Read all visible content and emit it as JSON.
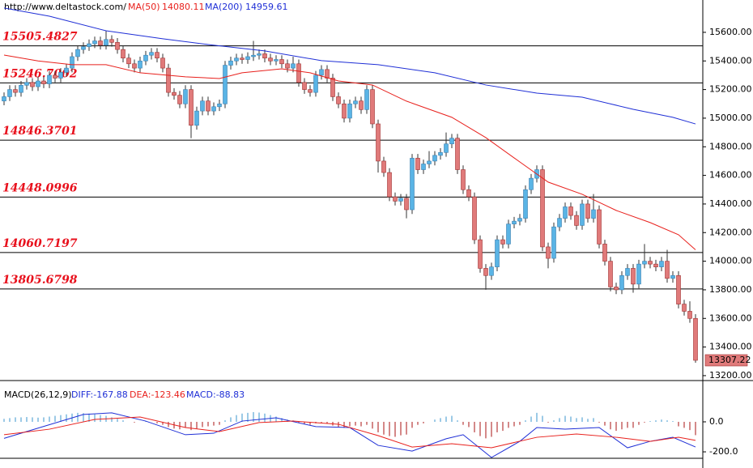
{
  "chart_data": {
    "type": "candlestick",
    "source": "http://www.deltastock.com/",
    "up_color": "#5ab4e5",
    "down_color": "#e07a7a",
    "wick_color": "#333333",
    "open": [
      15120,
      15150,
      15200,
      15180,
      15230,
      15250,
      15220,
      15260,
      15240,
      15300,
      15280,
      15320,
      15350,
      15430,
      15480,
      15500,
      15520,
      15540,
      15510,
      15550,
      15530,
      15480,
      15420,
      15380,
      15350,
      15400,
      15440,
      15460,
      15420,
      15350,
      15180,
      15160,
      15100,
      15200,
      14950,
      15050,
      15120,
      15050,
      15080,
      15100,
      15370,
      15400,
      15420,
      15410,
      15430,
      15440,
      15450,
      15420,
      15400,
      15410,
      15380,
      15350,
      15380,
      15250,
      15200,
      15180,
      15300,
      15340,
      15280,
      15150,
      15100,
      15000,
      15100,
      15120,
      15060,
      15200,
      14960,
      14700,
      14620,
      14450,
      14420,
      14440,
      14360,
      14720,
      14640,
      14680,
      14700,
      14740,
      14760,
      14820,
      14860,
      14640,
      14500,
      14450,
      14150,
      13950,
      13900,
      13960,
      14150,
      14120,
      14260,
      14280,
      14300,
      14500,
      14580,
      14640,
      14100,
      14020,
      14240,
      14300,
      14380,
      14320,
      14250,
      14400,
      14300,
      14360,
      14120,
      14000,
      13820,
      13800,
      13900,
      13950,
      13840,
      13980,
      14000,
      13980,
      13960,
      14000,
      13880,
      13900,
      13700,
      13650,
      13600
    ],
    "high": [
      15180,
      15230,
      15230,
      15260,
      15280,
      15280,
      15290,
      15290,
      15330,
      15330,
      15350,
      15380,
      15460,
      15510,
      15530,
      15550,
      15570,
      15570,
      15610,
      15580,
      15560,
      15510,
      15450,
      15410,
      15430,
      15470,
      15490,
      15490,
      15450,
      15380,
      15210,
      15190,
      15230,
      15230,
      15080,
      15150,
      15150,
      15110,
      15130,
      15400,
      15430,
      15450,
      15450,
      15460,
      15540,
      15480,
      15480,
      15450,
      15440,
      15440,
      15410,
      15430,
      15410,
      15280,
      15230,
      15330,
      15370,
      15370,
      15310,
      15180,
      15130,
      15130,
      15150,
      15150,
      15230,
      15230,
      14990,
      14730,
      14650,
      14480,
      14470,
      14470,
      14750,
      14750,
      14710,
      14770,
      14770,
      14790,
      14900,
      14890,
      14890,
      14670,
      14530,
      14480,
      14180,
      13980,
      13990,
      14180,
      14180,
      14290,
      14310,
      14330,
      14530,
      14610,
      14670,
      14670,
      14130,
      14270,
      14330,
      14410,
      14410,
      14350,
      14430,
      14430,
      14470,
      14390,
      14150,
      14030,
      13850,
      13930,
      13980,
      13980,
      14010,
      14120,
      14030,
      14010,
      14030,
      14080,
      13930,
      13930,
      13730,
      13720,
      13630
    ],
    "low": [
      15090,
      15120,
      15150,
      15150,
      15200,
      15190,
      15190,
      15210,
      15210,
      15250,
      15250,
      15290,
      15320,
      15400,
      15450,
      15470,
      15490,
      15480,
      15480,
      15500,
      15450,
      15390,
      15350,
      15320,
      15320,
      15370,
      15410,
      15390,
      15320,
      15150,
      15130,
      15070,
      15070,
      14860,
      14920,
      15020,
      15020,
      15020,
      15050,
      15070,
      15340,
      15370,
      15380,
      15380,
      15400,
      15410,
      15390,
      15370,
      15370,
      15350,
      15320,
      15320,
      15220,
      15170,
      15150,
      15150,
      15270,
      15250,
      15120,
      15070,
      14970,
      14970,
      15070,
      15030,
      15030,
      14930,
      14620,
      14590,
      14420,
      14390,
      14390,
      14300,
      14330,
      14610,
      14610,
      14650,
      14670,
      14710,
      14730,
      14790,
      14610,
      14470,
      14420,
      14120,
      13920,
      13800,
      13870,
      13930,
      14090,
      14090,
      14230,
      14250,
      14270,
      14470,
      14550,
      14070,
      13950,
      13990,
      14210,
      14270,
      14290,
      14220,
      14220,
      14270,
      14270,
      14090,
      13970,
      13790,
      13770,
      13770,
      13870,
      13780,
      13810,
      13950,
      13950,
      13930,
      13930,
      13850,
      13850,
      13670,
      13620,
      13570,
      13290
    ],
    "close": [
      15150,
      15200,
      15180,
      15230,
      15250,
      15220,
      15260,
      15240,
      15300,
      15280,
      15320,
      15350,
      15430,
      15480,
      15500,
      15520,
      15540,
      15510,
      15550,
      15530,
      15480,
      15420,
      15380,
      15350,
      15400,
      15440,
      15460,
      15420,
      15350,
      15180,
      15160,
      15100,
      15200,
      14950,
      15050,
      15120,
      15050,
      15080,
      15100,
      15370,
      15400,
      15420,
      15410,
      15430,
      15440,
      15450,
      15420,
      15400,
      15410,
      15380,
      15350,
      15380,
      15250,
      15200,
      15180,
      15300,
      15340,
      15280,
      15150,
      15100,
      15000,
      15100,
      15120,
      15060,
      15200,
      14960,
      14700,
      14620,
      14450,
      14420,
      14440,
      14360,
      14720,
      14640,
      14680,
      14700,
      14740,
      14760,
      14820,
      14860,
      14640,
      14500,
      14450,
      14150,
      13950,
      13900,
      13960,
      14150,
      14120,
      14260,
      14280,
      14300,
      14500,
      14580,
      14640,
      14100,
      14020,
      14240,
      14300,
      14380,
      14320,
      14250,
      14400,
      14300,
      14360,
      14120,
      14000,
      13820,
      13800,
      13900,
      13950,
      13840,
      13980,
      14000,
      13980,
      13960,
      14000,
      13880,
      13900,
      13700,
      13650,
      13600,
      13307.22
    ],
    "ylim": [
      13177,
      15826
    ],
    "yticks": [
      {
        "value": 13200,
        "label": "13200.00"
      },
      {
        "value": 13400,
        "label": "13400.00"
      },
      {
        "value": 13600,
        "label": "13600.00"
      },
      {
        "value": 13800,
        "label": "13800.00"
      },
      {
        "value": 14000,
        "label": "14000.00"
      },
      {
        "value": 14200,
        "label": "14200.00"
      },
      {
        "value": 14400,
        "label": "14400.00"
      },
      {
        "value": 14600,
        "label": "14600.00"
      },
      {
        "value": 14800,
        "label": "14800.00"
      },
      {
        "value": 15000,
        "label": "15000.00"
      },
      {
        "value": 15200,
        "label": "15200.00"
      },
      {
        "value": 15400,
        "label": "15400.00"
      },
      {
        "value": 15600,
        "label": "15600.00"
      }
    ],
    "ma": [
      {
        "name": "MA(50)",
        "color": "#e8201c",
        "x": [
          0,
          6,
          12,
          18,
          24,
          32,
          38,
          42,
          49,
          54,
          59,
          65,
          71,
          79,
          85,
          91,
          96,
          102,
          108,
          114,
          119,
          122
        ],
        "values": [
          15441,
          15400,
          15374,
          15374,
          15317,
          15289,
          15277,
          15317,
          15345,
          15317,
          15260,
          15232,
          15119,
          15006,
          14864,
          14694,
          14553,
          14468,
          14355,
          14270,
          14185,
          14080.11
        ]
      },
      {
        "name": "MA(200)",
        "color": "#1f2fd6",
        "x": [
          0,
          8,
          18,
          28,
          36,
          46,
          56,
          66,
          76,
          85,
          94,
          102,
          111,
          118,
          122
        ],
        "values": [
          15770,
          15713,
          15611,
          15555,
          15515,
          15470,
          15402,
          15374,
          15317,
          15232,
          15175,
          15147,
          15062,
          15006,
          14959.61
        ]
      }
    ],
    "levels": [
      15505.4827,
      15246.7002,
      14846.3701,
      14448.0996,
      14060.7197,
      13805.6798
    ],
    "level_color": "#e8101c",
    "macd": {
      "title": "MACD(26,12,9)",
      "ylim": [
        -243,
        232
      ],
      "yticks": [
        {
          "value": 0,
          "label": "0.0"
        },
        {
          "value": -200,
          "label": "-200.0"
        }
      ],
      "histogram": {
        "name": "MACD:",
        "up_color": "#5aa6d6",
        "down_color": "#b83a3a",
        "values": [
          20,
          25,
          30,
          30,
          32,
          30,
          28,
          30,
          35,
          40,
          45,
          50,
          55,
          60,
          58,
          55,
          50,
          45,
          40,
          30,
          20,
          10,
          0,
          -5,
          0,
          5,
          0,
          -10,
          -20,
          -35,
          -45,
          -50,
          -40,
          -55,
          -45,
          -35,
          -30,
          -25,
          -20,
          10,
          30,
          45,
          55,
          60,
          65,
          62,
          55,
          45,
          35,
          25,
          15,
          10,
          -5,
          -15,
          -20,
          -10,
          -5,
          -10,
          -25,
          -35,
          -40,
          -30,
          -25,
          -30,
          -20,
          -45,
          -70,
          -85,
          -95,
          -100,
          -90,
          -85,
          -40,
          -20,
          -10,
          0,
          15,
          25,
          35,
          40,
          10,
          -20,
          -35,
          -70,
          -95,
          -110,
          -100,
          -70,
          -60,
          -40,
          -30,
          -20,
          10,
          35,
          60,
          40,
          -5,
          10,
          25,
          40,
          35,
          25,
          30,
          20,
          25,
          -5,
          -25,
          -50,
          -60,
          -50,
          -40,
          -40,
          -20,
          -5,
          5,
          10,
          15,
          10,
          5,
          -30,
          -40,
          -55,
          -88.83
        ]
      },
      "lines": [
        {
          "name": "DIFF:",
          "color": "#1f2fd6",
          "x": [
            0,
            14,
            19,
            25,
            32,
            37,
            42,
            48,
            55,
            61,
            66,
            72,
            78,
            81,
            86,
            91,
            94,
            99,
            105,
            110,
            114,
            118,
            122
          ],
          "values": [
            -110,
            49,
            60,
            5,
            -86,
            -76,
            5,
            27,
            -32,
            -38,
            -157,
            -195,
            -113,
            -86,
            -238,
            -130,
            -38,
            -49,
            -38,
            -173,
            -130,
            -103,
            -167.88
          ]
        },
        {
          "name": "DEA:",
          "color": "#e8201c",
          "x": [
            0,
            8,
            16,
            24,
            32,
            38,
            45,
            51,
            59,
            66,
            72,
            79,
            86,
            94,
            101,
            108,
            114,
            119,
            122
          ],
          "values": [
            -86,
            -49,
            16,
            32,
            -38,
            -65,
            -5,
            5,
            -16,
            -92,
            -168,
            -146,
            -173,
            -103,
            -81,
            -103,
            -130,
            -103,
            -123.46
          ]
        }
      ]
    }
  }
}
